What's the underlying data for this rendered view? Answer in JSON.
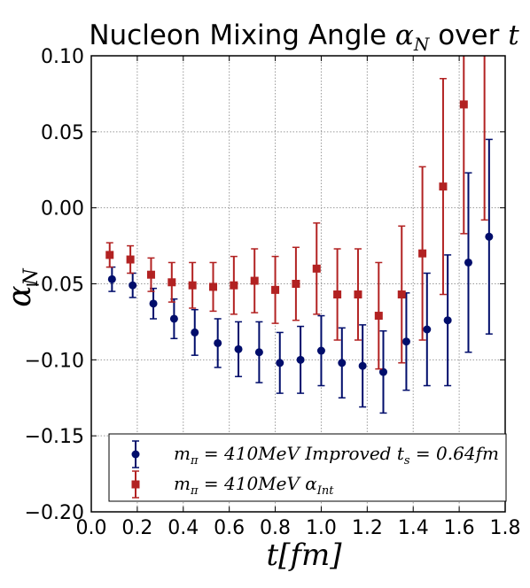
{
  "chart_data": {
    "type": "scatter",
    "title_text": "Nucleon Mixing Angle ",
    "title_symbol": "α",
    "title_symbol_sub": "N",
    "title_suffix_text": " over ",
    "title_suffix_symbol": "t",
    "xlabel": "t[fm]",
    "ylabel_symbol": "α",
    "ylabel_sub": "N",
    "xlim": [
      0.0,
      1.8
    ],
    "ylim": [
      -0.2,
      0.1
    ],
    "x_ticks": [
      "0.0",
      "0.2",
      "0.4",
      "0.6",
      "0.8",
      "1.0",
      "1.2",
      "1.4",
      "1.6",
      "1.8"
    ],
    "y_ticks": [
      "0.10",
      "0.05",
      "0.00",
      "−0.05",
      "−0.10",
      "−0.15",
      "−0.20"
    ],
    "grid": true,
    "legend_position": "lower-right",
    "series": [
      {
        "name": "m_π = 410MeV Improved t_s = 0.64fm",
        "legend_parts": {
          "m": "m",
          "pi": "π",
          "rest": " = 410MeV Improved t",
          "s": "s",
          "tail": " = 0.64fm"
        },
        "color": "#000d6b",
        "marker": "circle",
        "x": [
          0.09,
          0.18,
          0.27,
          0.36,
          0.45,
          0.55,
          0.64,
          0.73,
          0.82,
          0.91,
          1.0,
          1.09,
          1.18,
          1.27,
          1.37,
          1.46,
          1.55,
          1.64,
          1.73
        ],
        "y": [
          -0.047,
          -0.051,
          -0.063,
          -0.073,
          -0.082,
          -0.089,
          -0.093,
          -0.095,
          -0.102,
          -0.1,
          -0.094,
          -0.102,
          -0.104,
          -0.108,
          -0.088,
          -0.08,
          -0.074,
          -0.036,
          -0.019
        ],
        "err": [
          0.008,
          0.008,
          0.01,
          0.013,
          0.015,
          0.016,
          0.018,
          0.02,
          0.02,
          0.022,
          0.023,
          0.023,
          0.027,
          0.027,
          0.032,
          0.037,
          0.043,
          0.059,
          0.064
        ]
      },
      {
        "name": "m_π = 410MeV α_Int",
        "legend_parts": {
          "m": "m",
          "pi": "π",
          "rest": " = 410MeV ",
          "alpha": "α",
          "sub": "Int"
        },
        "color": "#b22222",
        "marker": "square",
        "x": [
          0.08,
          0.17,
          0.26,
          0.35,
          0.44,
          0.53,
          0.62,
          0.71,
          0.8,
          0.89,
          0.98,
          1.07,
          1.16,
          1.25,
          1.35,
          1.44,
          1.53,
          1.62,
          1.71
        ],
        "y": [
          -0.031,
          -0.034,
          -0.044,
          -0.049,
          -0.051,
          -0.052,
          -0.051,
          -0.048,
          -0.054,
          -0.05,
          -0.04,
          -0.057,
          -0.057,
          -0.071,
          -0.057,
          -0.03,
          0.014,
          0.068,
          0.112
        ],
        "err": [
          0.008,
          0.009,
          0.011,
          0.013,
          0.015,
          0.016,
          0.019,
          0.021,
          0.022,
          0.024,
          0.03,
          0.03,
          0.03,
          0.035,
          0.045,
          0.057,
          0.071,
          0.085,
          0.12
        ]
      }
    ]
  }
}
